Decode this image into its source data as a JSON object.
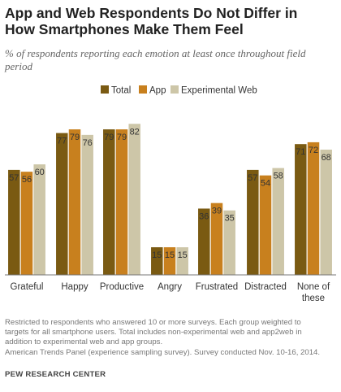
{
  "chart_data": {
    "type": "bar",
    "title": "App and Web Respondents  Do Not Differ in How Smartphones Make Them Feel",
    "subtitle": "% of respondents reporting each emotion at least once throughout field period",
    "categories": [
      "Grateful",
      "Happy",
      "Productive",
      "Angry",
      "Frustrated",
      "Distracted",
      "None of these"
    ],
    "series": [
      {
        "name": "Total",
        "values": [
          57,
          77,
          79,
          15,
          36,
          57,
          71
        ],
        "color": "#7a5a12"
      },
      {
        "name": "App",
        "values": [
          56,
          79,
          79,
          15,
          39,
          54,
          72
        ],
        "color": "#c8801e"
      },
      {
        "name": "Experimental Web",
        "values": [
          60,
          76,
          82,
          15,
          35,
          58,
          68
        ],
        "color": "#cdc6a8"
      }
    ],
    "ylim": [
      0,
      100
    ],
    "grid": false,
    "legend_position": "top-center"
  },
  "notes": [
    "Restricted to respondents who answered 10 or more surveys. Each group weighted to",
    "targets for all smartphone users. Total includes non-experimental web and app2web in",
    "addition to experimental web and app groups.",
    "American Trends Panel (experience sampling survey). Survey conducted Nov. 10-16, 2014."
  ],
  "source_brand": "PEW RESEARCH CENTER"
}
